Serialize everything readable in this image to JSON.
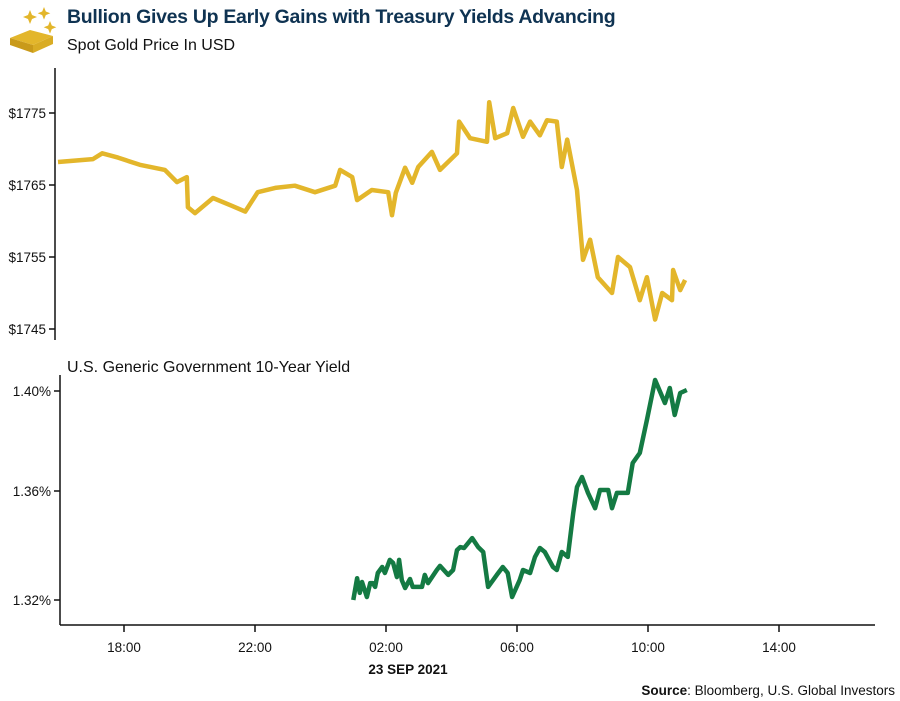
{
  "header": {
    "title": "Bullion Gives Up Early Gains with Treasury Yields Advancing",
    "subtitle": "Spot Gold Price In USD",
    "logo_icon": "gold-bars-sparkle-icon"
  },
  "source": {
    "label": "Source",
    "text": ": Bloomberg, U.S. Global Investors"
  },
  "chart_data": [
    {
      "type": "line",
      "title": "Spot Gold Price In USD",
      "color": "#E3B62B",
      "ylim": [
        1743.5,
        1781
      ],
      "yticks": [
        1775,
        1765,
        1755,
        1745
      ],
      "ytick_labels": [
        "$1775",
        "$1765",
        "$1755",
        "$1745"
      ],
      "grid": false,
      "series": [
        {
          "x": [
            "2021-09-22 15:59",
            "2021-09-22 17:03",
            "2021-09-22 17:20",
            "2021-09-22 17:49",
            "2021-09-22 18:29",
            "2021-09-22 19:15",
            "2021-09-22 19:37",
            "2021-09-22 19:55",
            "2021-09-22 19:57",
            "2021-09-22 20:10",
            "2021-09-22 20:43",
            "2021-09-22 21:18",
            "2021-09-22 21:42",
            "2021-09-22 22:05",
            "2021-09-22 22:37",
            "2021-09-22 23:13",
            "2021-09-22 23:50",
            "2021-09-23 00:27",
            "2021-09-23 00:36",
            "2021-09-23 00:58",
            "2021-09-23 01:07",
            "2021-09-23 01:34",
            "2021-09-23 02:04",
            "2021-09-23 02:11",
            "2021-09-23 02:18",
            "2021-09-23 02:35",
            "2021-09-23 02:48",
            "2021-09-23 02:59",
            "2021-09-23 03:24",
            "2021-09-23 03:39",
            "2021-09-23 04:10",
            "2021-09-23 04:14",
            "2021-09-23 04:34",
            "2021-09-23 05:05",
            "2021-09-23 05:09",
            "2021-09-23 05:20",
            "2021-09-23 05:42",
            "2021-09-23 05:53",
            "2021-09-23 06:11",
            "2021-09-23 06:24",
            "2021-09-23 06:42",
            "2021-09-23 06:55",
            "2021-09-23 07:13",
            "2021-09-23 07:22",
            "2021-09-23 07:32",
            "2021-09-23 07:50",
            "2021-09-23 08:01",
            "2021-09-23 08:14",
            "2021-09-23 08:28",
            "2021-09-23 08:54",
            "2021-09-23 09:05",
            "2021-09-23 09:27",
            "2021-09-23 09:45",
            "2021-09-23 09:58",
            "2021-09-23 10:13",
            "2021-09-23 10:26",
            "2021-09-23 10:44",
            "2021-09-23 10:46",
            "2021-09-23 10:59",
            "2021-09-23 11:08"
          ],
          "y": [
            1768.2,
            1768.6,
            1769.4,
            1768.8,
            1767.8,
            1767.1,
            1765.4,
            1766.1,
            1761.9,
            1761.1,
            1763.2,
            1762.1,
            1761.3,
            1764.0,
            1764.6,
            1764.9,
            1764.0,
            1764.9,
            1767.1,
            1766.1,
            1762.9,
            1764.3,
            1764.0,
            1760.8,
            1763.9,
            1767.4,
            1765.3,
            1767.5,
            1769.6,
            1767.1,
            1769.4,
            1773.8,
            1771.5,
            1771.0,
            1776.5,
            1771.5,
            1772.2,
            1775.7,
            1771.7,
            1773.8,
            1771.9,
            1774.0,
            1773.8,
            1767.5,
            1771.3,
            1764.3,
            1754.6,
            1757.4,
            1752.2,
            1750.0,
            1755.0,
            1753.6,
            1749.0,
            1752.2,
            1746.3,
            1750.0,
            1749.0,
            1753.2,
            1750.4,
            1751.8
          ]
        }
      ]
    },
    {
      "type": "line",
      "title": "U.S. Generic Government 10-Year Yield",
      "color": "#147A43",
      "ylim": [
        1.3108,
        1.4064
      ],
      "yticks": [
        1.4,
        1.36,
        1.32
      ],
      "ytick_labels": [
        "1.40%",
        "1.36%",
        "1.32%"
      ],
      "xlim": [
        "2021-09-22 16:03",
        "2021-09-23 16:56"
      ],
      "xticks": [
        "2021-09-22 18:00",
        "2021-09-22 22:00",
        "2021-09-23 02:00",
        "2021-09-23 06:00",
        "2021-09-23 10:00",
        "2021-09-23 14:00"
      ],
      "xtick_labels": [
        "18:00",
        "22:00",
        "02:00",
        "06:00",
        "10:00",
        "14:00"
      ],
      "xlabel": "23 SEP 2021",
      "grid": false,
      "series": [
        {
          "x": [
            "2021-09-23 01:00",
            "2021-09-23 01:07",
            "2021-09-23 01:12",
            "2021-09-23 01:16",
            "2021-09-23 01:25",
            "2021-09-23 01:31",
            "2021-09-23 01:36",
            "2021-09-23 01:40",
            "2021-09-23 01:45",
            "2021-09-23 01:53",
            "2021-09-23 01:58",
            "2021-09-23 02:07",
            "2021-09-23 02:13",
            "2021-09-23 02:20",
            "2021-09-23 02:24",
            "2021-09-23 02:29",
            "2021-09-23 02:35",
            "2021-09-23 02:44",
            "2021-09-23 02:49",
            "2021-09-23 03:06",
            "2021-09-23 03:11",
            "2021-09-23 03:17",
            "2021-09-23 03:33",
            "2021-09-23 03:39",
            "2021-09-23 03:54",
            "2021-09-23 04:03",
            "2021-09-23 04:10",
            "2021-09-23 04:16",
            "2021-09-23 04:23",
            "2021-09-23 04:38",
            "2021-09-23 04:49",
            "2021-09-23 04:58",
            "2021-09-23 05:07",
            "2021-09-23 05:23",
            "2021-09-23 05:34",
            "2021-09-23 05:43",
            "2021-09-23 05:51",
            "2021-09-23 06:05",
            "2021-09-23 06:11",
            "2021-09-23 06:24",
            "2021-09-23 06:33",
            "2021-09-23 06:42",
            "2021-09-23 06:51",
            "2021-09-23 07:06",
            "2021-09-23 07:13",
            "2021-09-23 07:22",
            "2021-09-23 07:33",
            "2021-09-23 07:43",
            "2021-09-23 07:50",
            "2021-09-23 07:59",
            "2021-09-23 08:10",
            "2021-09-23 08:23",
            "2021-09-23 08:32",
            "2021-09-23 08:47",
            "2021-09-23 08:54",
            "2021-09-23 09:03",
            "2021-09-23 09:18",
            "2021-09-23 09:23",
            "2021-09-23 09:32",
            "2021-09-23 09:45",
            "2021-09-23 09:58",
            "2021-09-23 10:13",
            "2021-09-23 10:31",
            "2021-09-23 10:40",
            "2021-09-23 10:49",
            "2021-09-23 10:59",
            "2021-09-23 11:11"
          ],
          "y": [
            1.32,
            1.328,
            1.3226,
            1.3266,
            1.3211,
            1.3262,
            1.3262,
            1.3248,
            1.3299,
            1.3321,
            1.3299,
            1.3347,
            1.3336,
            1.3284,
            1.3347,
            1.3273,
            1.3244,
            1.3277,
            1.3248,
            1.3248,
            1.3292,
            1.3262,
            1.331,
            1.3325,
            1.3292,
            1.331,
            1.3383,
            1.3394,
            1.3391,
            1.3427,
            1.3394,
            1.3376,
            1.3248,
            1.3292,
            1.3321,
            1.3299,
            1.3211,
            1.3273,
            1.331,
            1.3299,
            1.3358,
            1.3391,
            1.3376,
            1.3321,
            1.331,
            1.3376,
            1.3358,
            1.3519,
            1.3616,
            1.3656,
            1.3593,
            1.3537,
            1.3604,
            1.3604,
            1.3537,
            1.3593,
            1.3593,
            1.3593,
            1.3712,
            1.3752,
            1.3884,
            1.4044,
            1.3952,
            1.4012,
            1.3904,
            1.3992,
            1.4004
          ]
        }
      ]
    }
  ]
}
